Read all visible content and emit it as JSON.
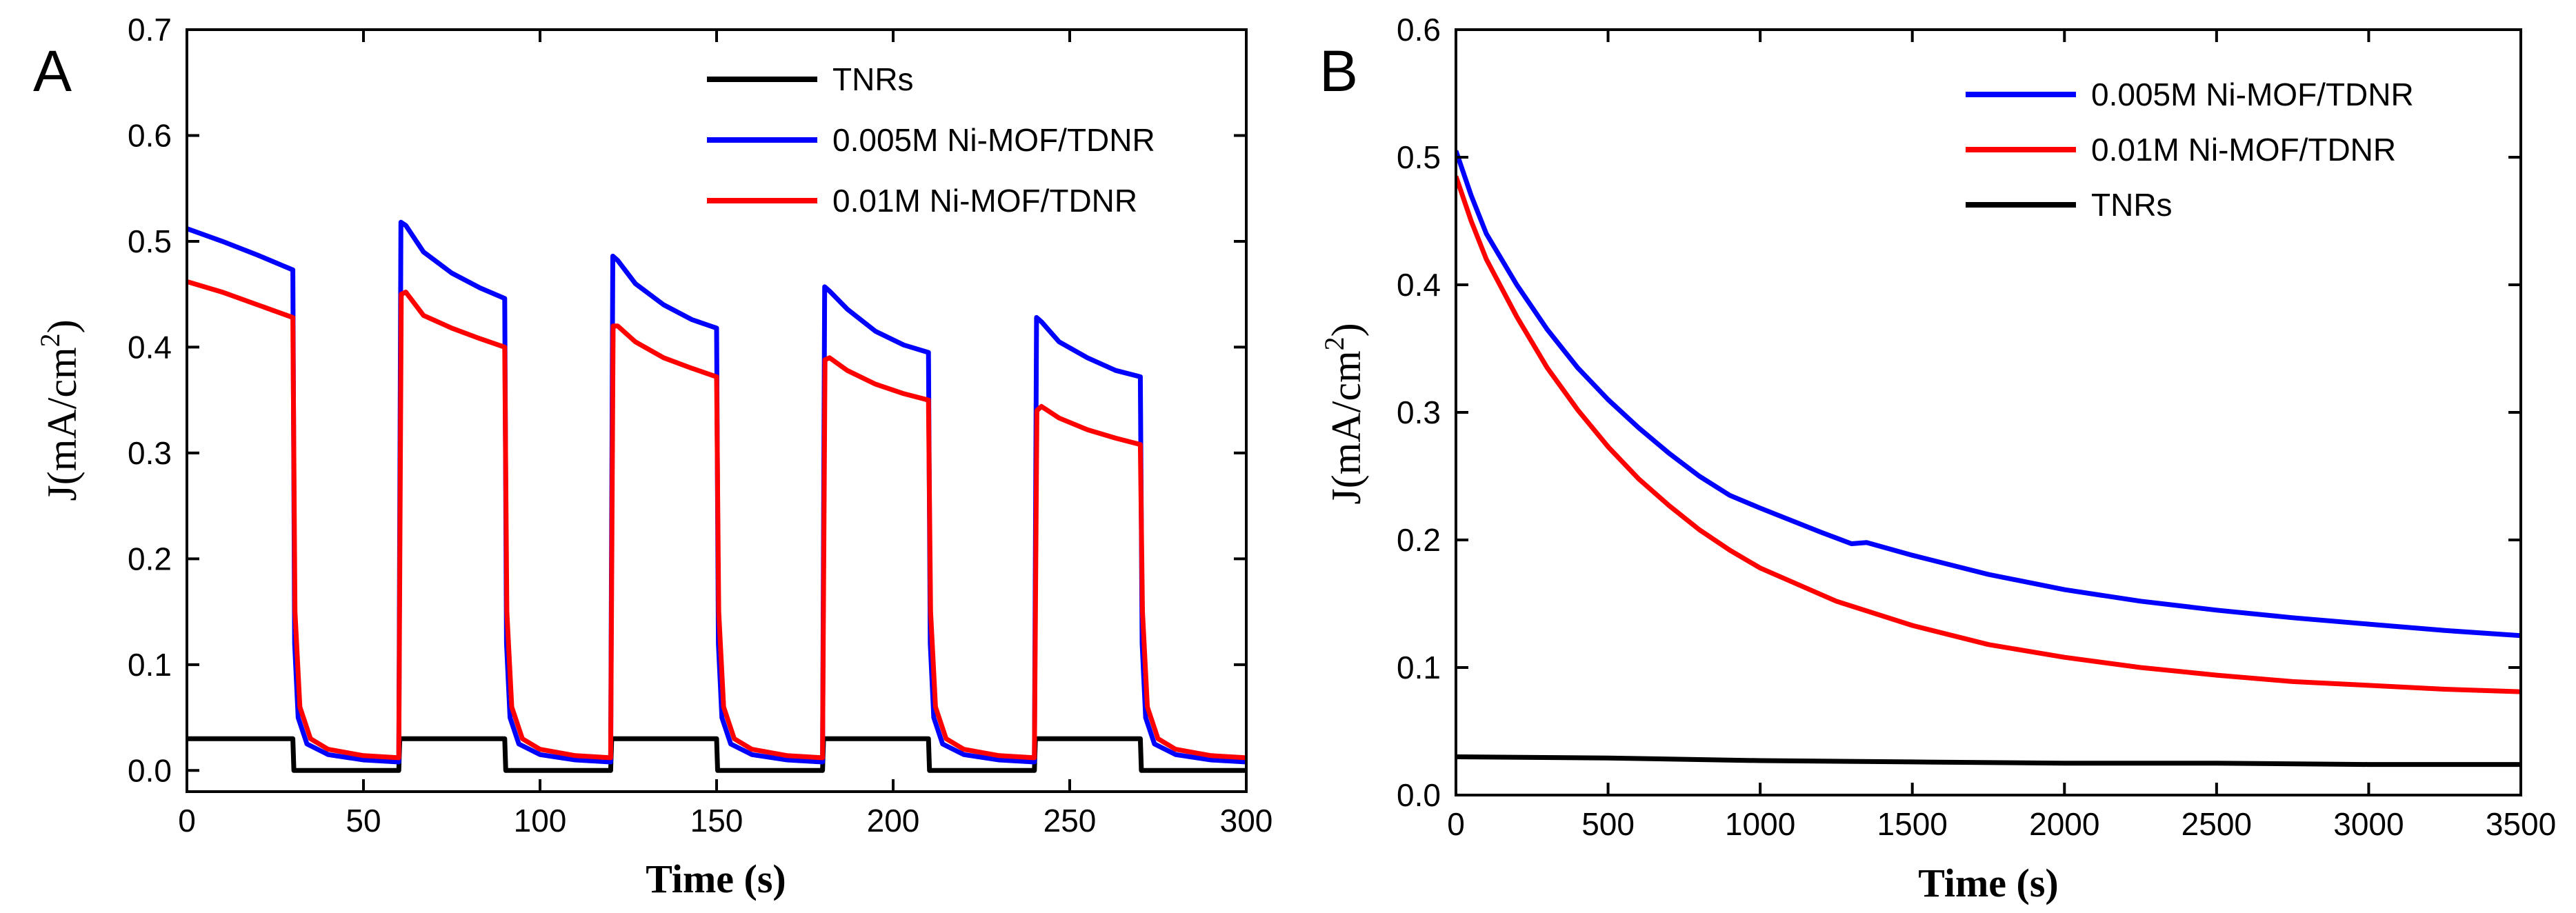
{
  "chart_data": [
    {
      "type": "line",
      "panel_label": "A",
      "title": "",
      "xlabel": "Time (s)",
      "ylabel": "J(mA/cm",
      "ylabel_sup": "2",
      "ylabel_close": ")",
      "xlim": [
        0,
        300
      ],
      "ylim": [
        -0.02,
        0.7
      ],
      "xticks": [
        0,
        50,
        100,
        150,
        200,
        250,
        300
      ],
      "xtick_labels": [
        "0",
        "50",
        "100",
        "150",
        "200",
        "250",
        "300"
      ],
      "yticks": [
        0.0,
        0.1,
        0.2,
        0.3,
        0.4,
        0.5,
        0.6,
        0.7
      ],
      "ytick_labels": [
        "0.0",
        "0.1",
        "0.2",
        "0.3",
        "0.4",
        "0.5",
        "0.6",
        "0.7"
      ],
      "legend_position": "top-right",
      "series": [
        {
          "name": "TNRs",
          "color": "#000000",
          "points": [
            [
              0,
              0.03
            ],
            [
              30,
              0.03
            ],
            [
              30.3,
              0.0
            ],
            [
              60,
              0.0
            ],
            [
              60.3,
              0.03
            ],
            [
              90,
              0.03
            ],
            [
              90.3,
              0.0
            ],
            [
              120,
              0.0
            ],
            [
              120.3,
              0.03
            ],
            [
              150,
              0.03
            ],
            [
              150.3,
              0.0
            ],
            [
              180,
              0.0
            ],
            [
              180.3,
              0.03
            ],
            [
              210,
              0.03
            ],
            [
              210.3,
              0.0
            ],
            [
              240,
              0.0
            ],
            [
              240.3,
              0.03
            ],
            [
              270,
              0.03
            ],
            [
              270.3,
              0.0
            ],
            [
              300,
              0.0
            ]
          ]
        },
        {
          "name": "0.005M Ni-MOF/TDNR",
          "color": "#0000ff",
          "points": [
            [
              0,
              0.512
            ],
            [
              10,
              0.5
            ],
            [
              20,
              0.487
            ],
            [
              30,
              0.473
            ],
            [
              30.5,
              0.12
            ],
            [
              31.5,
              0.05
            ],
            [
              34,
              0.025
            ],
            [
              40,
              0.015
            ],
            [
              50,
              0.01
            ],
            [
              60,
              0.008
            ],
            [
              60.6,
              0.518
            ],
            [
              62,
              0.515
            ],
            [
              67,
              0.49
            ],
            [
              75,
              0.47
            ],
            [
              83,
              0.456
            ],
            [
              90,
              0.446
            ],
            [
              90.5,
              0.12
            ],
            [
              91.5,
              0.05
            ],
            [
              94,
              0.025
            ],
            [
              100,
              0.015
            ],
            [
              110,
              0.01
            ],
            [
              120,
              0.008
            ],
            [
              120.6,
              0.486
            ],
            [
              122,
              0.482
            ],
            [
              127,
              0.46
            ],
            [
              135,
              0.44
            ],
            [
              143,
              0.426
            ],
            [
              150,
              0.418
            ],
            [
              150.5,
              0.12
            ],
            [
              151.5,
              0.05
            ],
            [
              154,
              0.025
            ],
            [
              160,
              0.015
            ],
            [
              170,
              0.01
            ],
            [
              180,
              0.008
            ],
            [
              180.6,
              0.457
            ],
            [
              182,
              0.453
            ],
            [
              187,
              0.436
            ],
            [
              195,
              0.415
            ],
            [
              203,
              0.402
            ],
            [
              210,
              0.395
            ],
            [
              210.5,
              0.12
            ],
            [
              211.5,
              0.05
            ],
            [
              214,
              0.025
            ],
            [
              220,
              0.015
            ],
            [
              230,
              0.01
            ],
            [
              240,
              0.008
            ],
            [
              240.6,
              0.428
            ],
            [
              242,
              0.424
            ],
            [
              247,
              0.405
            ],
            [
              255,
              0.39
            ],
            [
              263,
              0.378
            ],
            [
              270,
              0.372
            ],
            [
              270.5,
              0.12
            ],
            [
              271.5,
              0.05
            ],
            [
              274,
              0.025
            ],
            [
              280,
              0.015
            ],
            [
              290,
              0.01
            ],
            [
              300,
              0.008
            ]
          ]
        },
        {
          "name": "0.01M Ni-MOF/TDNR",
          "color": "#ff0000",
          "points": [
            [
              0,
              0.462
            ],
            [
              10,
              0.452
            ],
            [
              20,
              0.44
            ],
            [
              30,
              0.428
            ],
            [
              30.6,
              0.15
            ],
            [
              32,
              0.06
            ],
            [
              35,
              0.03
            ],
            [
              40,
              0.02
            ],
            [
              50,
              0.014
            ],
            [
              60,
              0.012
            ],
            [
              60.7,
              0.45
            ],
            [
              62,
              0.452
            ],
            [
              67,
              0.43
            ],
            [
              75,
              0.418
            ],
            [
              83,
              0.408
            ],
            [
              90,
              0.4
            ],
            [
              90.6,
              0.15
            ],
            [
              92,
              0.06
            ],
            [
              95,
              0.03
            ],
            [
              100,
              0.02
            ],
            [
              110,
              0.014
            ],
            [
              120,
              0.012
            ],
            [
              120.7,
              0.42
            ],
            [
              122,
              0.42
            ],
            [
              127,
              0.405
            ],
            [
              135,
              0.39
            ],
            [
              143,
              0.38
            ],
            [
              150,
              0.372
            ],
            [
              150.6,
              0.15
            ],
            [
              152,
              0.06
            ],
            [
              155,
              0.03
            ],
            [
              160,
              0.02
            ],
            [
              170,
              0.014
            ],
            [
              180,
              0.012
            ],
            [
              180.7,
              0.388
            ],
            [
              182,
              0.39
            ],
            [
              187,
              0.378
            ],
            [
              195,
              0.365
            ],
            [
              203,
              0.356
            ],
            [
              210,
              0.35
            ],
            [
              210.6,
              0.15
            ],
            [
              212,
              0.06
            ],
            [
              215,
              0.03
            ],
            [
              220,
              0.02
            ],
            [
              230,
              0.014
            ],
            [
              240,
              0.012
            ],
            [
              240.7,
              0.34
            ],
            [
              242,
              0.344
            ],
            [
              247,
              0.333
            ],
            [
              255,
              0.322
            ],
            [
              263,
              0.314
            ],
            [
              270,
              0.308
            ],
            [
              270.6,
              0.15
            ],
            [
              272,
              0.06
            ],
            [
              275,
              0.03
            ],
            [
              280,
              0.02
            ],
            [
              290,
              0.014
            ],
            [
              300,
              0.012
            ]
          ]
        }
      ]
    },
    {
      "type": "line",
      "panel_label": "B",
      "title": "",
      "xlabel": "Time (s)",
      "ylabel": "J(mA/cm",
      "ylabel_sup": "2",
      "ylabel_close": ")",
      "xlim": [
        0,
        3500
      ],
      "ylim": [
        0.0,
        0.6
      ],
      "xticks": [
        0,
        500,
        1000,
        1500,
        2000,
        2500,
        3000,
        3500
      ],
      "xtick_labels": [
        "0",
        "500",
        "1000",
        "1500",
        "2000",
        "2500",
        "3000",
        "3500"
      ],
      "yticks": [
        0.0,
        0.1,
        0.2,
        0.3,
        0.4,
        0.5,
        0.6
      ],
      "ytick_labels": [
        "0.0",
        "0.1",
        "0.2",
        "0.3",
        "0.4",
        "0.5",
        "0.6"
      ],
      "legend_position": "top-right",
      "series": [
        {
          "name": "0.005M Ni-MOF/TDNR",
          "color": "#0000ff",
          "points": [
            [
              0,
              0.505
            ],
            [
              50,
              0.47
            ],
            [
              100,
              0.44
            ],
            [
              200,
              0.4
            ],
            [
              300,
              0.365
            ],
            [
              400,
              0.335
            ],
            [
              500,
              0.31
            ],
            [
              600,
              0.288
            ],
            [
              700,
              0.268
            ],
            [
              800,
              0.25
            ],
            [
              900,
              0.235
            ],
            [
              1000,
              0.225
            ],
            [
              1200,
              0.206
            ],
            [
              1300,
              0.197
            ],
            [
              1350,
              0.198
            ],
            [
              1500,
              0.188
            ],
            [
              1750,
              0.173
            ],
            [
              2000,
              0.161
            ],
            [
              2250,
              0.152
            ],
            [
              2500,
              0.145
            ],
            [
              2750,
              0.139
            ],
            [
              3000,
              0.134
            ],
            [
              3250,
              0.129
            ],
            [
              3500,
              0.125
            ]
          ]
        },
        {
          "name": "0.01M Ni-MOF/TDNR",
          "color": "#ff0000",
          "points": [
            [
              0,
              0.485
            ],
            [
              50,
              0.45
            ],
            [
              100,
              0.42
            ],
            [
              200,
              0.375
            ],
            [
              300,
              0.335
            ],
            [
              400,
              0.302
            ],
            [
              500,
              0.273
            ],
            [
              600,
              0.248
            ],
            [
              700,
              0.227
            ],
            [
              800,
              0.208
            ],
            [
              900,
              0.192
            ],
            [
              1000,
              0.178
            ],
            [
              1250,
              0.152
            ],
            [
              1500,
              0.133
            ],
            [
              1750,
              0.118
            ],
            [
              2000,
              0.108
            ],
            [
              2250,
              0.1
            ],
            [
              2500,
              0.094
            ],
            [
              2750,
              0.089
            ],
            [
              3000,
              0.086
            ],
            [
              3250,
              0.083
            ],
            [
              3500,
              0.081
            ]
          ]
        },
        {
          "name": "TNRs",
          "color": "#000000",
          "points": [
            [
              0,
              0.03
            ],
            [
              500,
              0.029
            ],
            [
              1000,
              0.027
            ],
            [
              1500,
              0.026
            ],
            [
              2000,
              0.025
            ],
            [
              2500,
              0.025
            ],
            [
              3000,
              0.024
            ],
            [
              3500,
              0.024
            ]
          ]
        }
      ]
    }
  ]
}
